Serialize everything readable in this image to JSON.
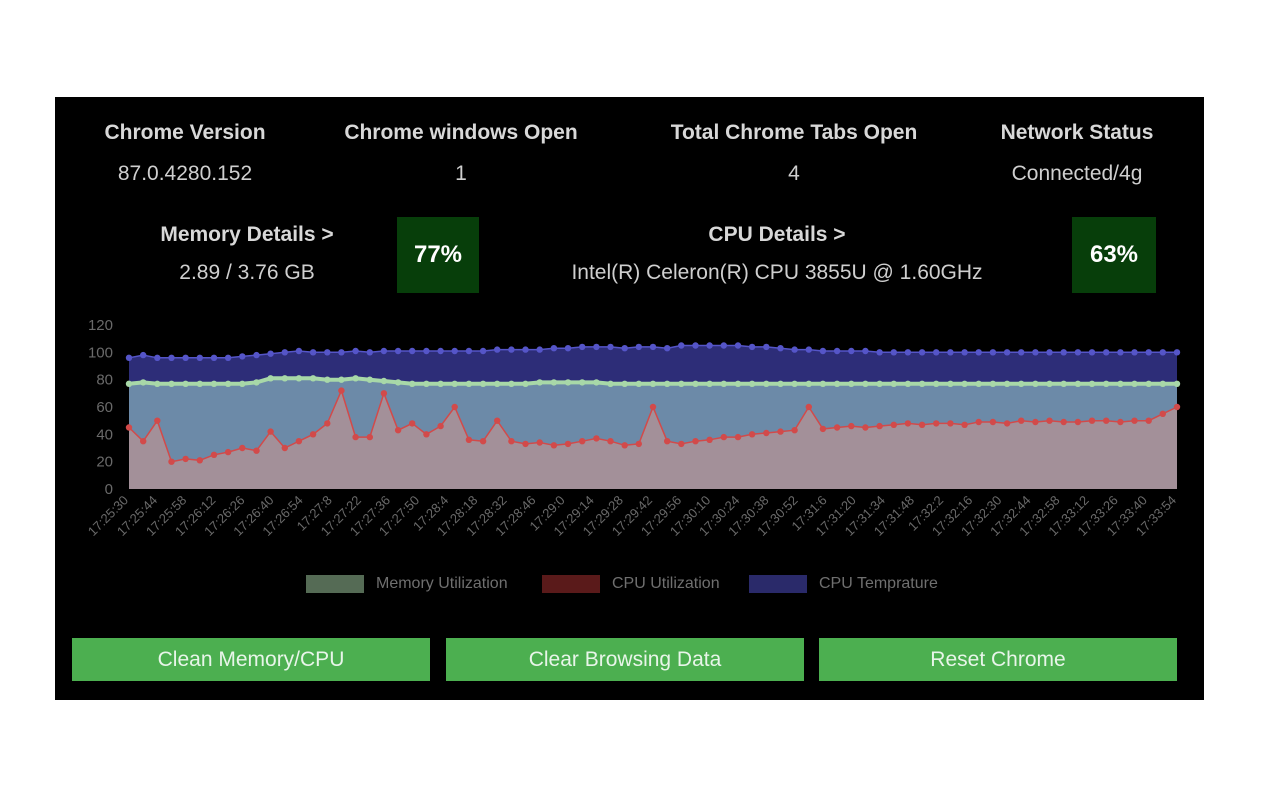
{
  "stats": [
    {
      "label": "Chrome Version",
      "value": "87.0.4280.152"
    },
    {
      "label": "Chrome windows Open",
      "value": "1"
    },
    {
      "label": "Total Chrome Tabs Open",
      "value": "4"
    },
    {
      "label": "Network Status",
      "value": "Connected/4g"
    }
  ],
  "memory": {
    "label": "Memory Details >",
    "value": "2.89 / 3.76 GB",
    "percent": "77%"
  },
  "cpu": {
    "label": "CPU Details >",
    "value": "Intel(R) Celeron(R) CPU 3855U @ 1.60GHz",
    "percent": "63%"
  },
  "buttons": {
    "clean": "Clean Memory/CPU",
    "clear": "Clear Browsing Data",
    "reset": "Reset Chrome"
  },
  "colors": {
    "memory": "#8fbc8f",
    "cpu": "#cd5c5c",
    "temp": "#4b4bb4",
    "button": "#4caf50",
    "percent_bg": "#073e0a"
  },
  "chart_data": {
    "type": "area",
    "ylim": [
      0,
      120
    ],
    "yticks": [
      0,
      20,
      40,
      60,
      80,
      100,
      120
    ],
    "x_tick_labels": [
      "17:25:30",
      "17:25:44",
      "17:25:58",
      "17:26:12",
      "17:26:26",
      "17:26:40",
      "17:26:54",
      "17:27:8",
      "17:27:22",
      "17:27:36",
      "17:27:50",
      "17:28:4",
      "17:28:18",
      "17:28:32",
      "17:28:46",
      "17:29:0",
      "17:29:14",
      "17:29:28",
      "17:29:42",
      "17:29:56",
      "17:30:10",
      "17:30:24",
      "17:30:38",
      "17:30:52",
      "17:31:6",
      "17:31:20",
      "17:31:34",
      "17:31:48",
      "17:32:2",
      "17:32:16",
      "17:32:30",
      "17:32:44",
      "17:32:58",
      "17:33:12",
      "17:33:26",
      "17:33:40",
      "17:33:54"
    ],
    "series": [
      {
        "name": "Memory Utilization",
        "color": "#8fbc8f",
        "values": [
          77,
          78,
          77,
          77,
          77,
          77,
          77,
          77,
          77,
          78,
          81,
          81,
          81,
          81,
          80,
          80,
          81,
          80,
          79,
          78,
          77,
          77,
          77,
          77,
          77,
          77,
          77,
          77,
          77,
          78,
          78,
          78,
          78,
          78,
          77,
          77,
          77,
          77,
          77,
          77,
          77,
          77,
          77,
          77,
          77,
          77,
          77,
          77,
          77,
          77,
          77,
          77,
          77,
          77,
          77,
          77,
          77,
          77,
          77,
          77,
          77,
          77,
          77,
          77,
          77,
          77,
          77,
          77,
          77,
          77,
          77,
          77,
          77,
          77,
          77
        ]
      },
      {
        "name": "CPU Utilization",
        "color": "#cd5c5c",
        "values": [
          45,
          35,
          50,
          20,
          22,
          21,
          25,
          27,
          30,
          28,
          42,
          30,
          35,
          40,
          48,
          72,
          38,
          38,
          70,
          43,
          48,
          40,
          46,
          60,
          36,
          35,
          50,
          35,
          33,
          34,
          32,
          33,
          35,
          37,
          35,
          32,
          33,
          60,
          35,
          33,
          35,
          36,
          38,
          38,
          40,
          41,
          42,
          43,
          60,
          44,
          45,
          46,
          45,
          46,
          47,
          48,
          47,
          48,
          48,
          47,
          49,
          49,
          48,
          50,
          49,
          50,
          49,
          49,
          50,
          50,
          49,
          50,
          50,
          55,
          60
        ]
      },
      {
        "name": "CPU Temprature",
        "color": "#4b4bb4",
        "values": [
          96,
          98,
          96,
          96,
          96,
          96,
          96,
          96,
          97,
          98,
          99,
          100,
          101,
          100,
          100,
          100,
          101,
          100,
          101,
          101,
          101,
          101,
          101,
          101,
          101,
          101,
          102,
          102,
          102,
          102,
          103,
          103,
          104,
          104,
          104,
          103,
          104,
          104,
          103,
          105,
          105,
          105,
          105,
          105,
          104,
          104,
          103,
          102,
          102,
          101,
          101,
          101,
          101,
          100,
          100,
          100,
          100,
          100,
          100,
          100,
          100,
          100,
          100,
          100,
          100,
          100,
          100,
          100,
          100,
          100,
          100,
          100,
          100,
          100,
          100
        ]
      }
    ]
  }
}
